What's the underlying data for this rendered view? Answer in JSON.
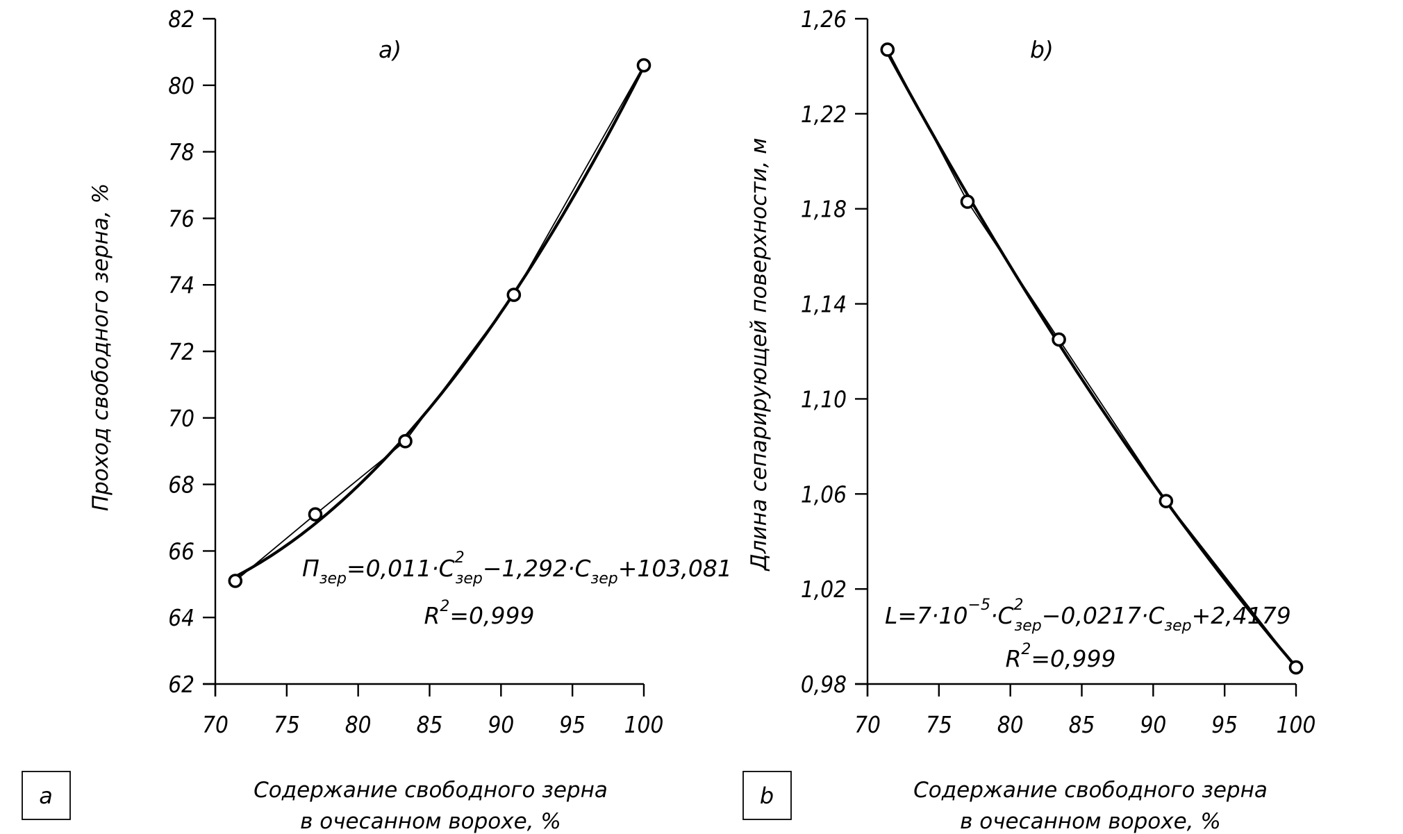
{
  "chart_data": [
    {
      "id": "a",
      "type": "line",
      "panel_label": "a)",
      "box_label": "a",
      "xlabel_lines": [
        "Содержание свободного зерна",
        "в очесанном ворохе, %"
      ],
      "ylabel": "Проход свободного зерна, %",
      "xlim": [
        70,
        100
      ],
      "ylim": [
        62,
        82
      ],
      "x_ticks": [
        70,
        75,
        80,
        85,
        90,
        95,
        100
      ],
      "x_tick_labels": [
        "70",
        "75",
        "80",
        "85",
        "90",
        "95",
        "100"
      ],
      "y_ticks": [
        62,
        64,
        66,
        68,
        70,
        72,
        74,
        76,
        78,
        80,
        82
      ],
      "y_tick_labels": [
        "62",
        "64",
        "66",
        "68",
        "70",
        "72",
        "74",
        "76",
        "78",
        "80",
        "82"
      ],
      "grid": false,
      "series": [
        {
          "name": "experimental",
          "x": [
            71.4,
            77.0,
            83.3,
            90.9,
            100.0
          ],
          "y": [
            65.1,
            67.1,
            69.3,
            73.7,
            80.6
          ],
          "marker": "circle"
        },
        {
          "name": "quadratic trend",
          "fit": "poly2"
        }
      ],
      "equation": {
        "lhs": "П",
        "lhs_sub": "зер",
        "part1": "=0,011·C",
        "sup1": "2",
        "sub1": "зер",
        "part2": "−1,292·C",
        "sub2": "зер",
        "part3": "+103,081",
        "r2_prefix": "R",
        "r2_sup": "2",
        "r2_value": "=0,999"
      }
    },
    {
      "id": "b",
      "type": "line",
      "panel_label": "b)",
      "box_label": "b",
      "xlabel_lines": [
        "Содержание свободного зерна",
        "в очесанном ворохе, %"
      ],
      "ylabel": "Длина сепарирующей поверхности, м",
      "xlim": [
        70,
        100
      ],
      "ylim": [
        0.98,
        1.26
      ],
      "x_ticks": [
        70,
        75,
        80,
        85,
        90,
        95,
        100
      ],
      "x_tick_labels": [
        "70",
        "75",
        "80",
        "85",
        "90",
        "95",
        "100"
      ],
      "y_ticks": [
        0.98,
        1.02,
        1.06,
        1.1,
        1.14,
        1.18,
        1.22,
        1.26
      ],
      "y_tick_labels": [
        "0,98",
        "1,02",
        "1,06",
        "1,10",
        "1,14",
        "1,18",
        "1,22",
        "1,26"
      ],
      "grid": false,
      "series": [
        {
          "name": "experimental",
          "x": [
            71.4,
            77.0,
            83.4,
            90.9,
            100.0
          ],
          "y": [
            1.247,
            1.183,
            1.125,
            1.057,
            0.987
          ],
          "marker": "circle"
        },
        {
          "name": "quadratic trend",
          "fit": "poly2"
        }
      ],
      "equation": {
        "lhs": "L",
        "part1": "=7·10",
        "exp": "−5",
        "part1b": "·C",
        "sup1": "2",
        "sub1": "зер",
        "part2": "−0,0217·C",
        "sub2": "зер",
        "part3": "+2,4179",
        "r2_prefix": "R",
        "r2_sup": "2",
        "r2_value": "=0,999"
      }
    }
  ]
}
